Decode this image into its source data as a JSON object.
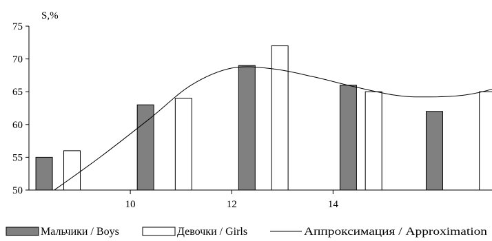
{
  "chart_data": {
    "type": "bar",
    "ylabel": "S,%",
    "ylim": [
      50,
      75
    ],
    "yticks": [
      50,
      55,
      60,
      65,
      70,
      75
    ],
    "xlim": [
      8,
      17
    ],
    "xticks": [
      10,
      12,
      14
    ],
    "grid": false,
    "legend_position": "bottom",
    "series": [
      {
        "name": "Мальчики / Boys",
        "color": "#808080",
        "x": [
          8.3,
          10.3,
          12.3,
          14.3,
          16.0
        ],
        "values": [
          55,
          63,
          69,
          66,
          62
        ]
      },
      {
        "name": "Девочки / Girls",
        "color": "#ffffff",
        "x": [
          8.85,
          11.05,
          12.95,
          14.8,
          17.05
        ],
        "values": [
          56,
          64,
          72,
          65,
          65
        ]
      }
    ],
    "line": {
      "name": "Аппроксимация  / Approximation",
      "color": "#000000",
      "x": [
        8.5,
        9.4,
        10.4,
        11.2,
        12.0,
        12.8,
        13.6,
        14.4,
        15.2,
        15.8,
        16.6,
        17.3,
        17.9
      ],
      "y": [
        50,
        55,
        61,
        66,
        68.6,
        68.5,
        67.3,
        65.8,
        64.5,
        64.2,
        64.5,
        65.8,
        68
      ]
    }
  }
}
